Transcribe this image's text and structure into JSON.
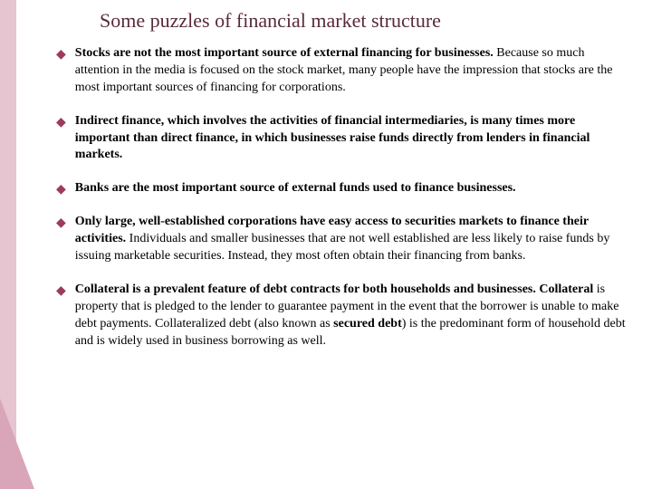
{
  "slide": {
    "title": "Some puzzles of financial market structure",
    "title_color": "#5a2a3a",
    "bullet_color": "#9c3b5a",
    "side_band_color": "#e6c4d0",
    "side_diag_color": "#d8a6b8",
    "background_color": "#ffffff",
    "title_fontsize": 22,
    "body_fontsize": 14,
    "bullets": [
      {
        "bold": "Stocks are not the most important source of external financing for businesses.",
        "rest": " Because so much attention in the media is focused on the stock market, many people have the impression that stocks are the most important sources of financing for corporations."
      },
      {
        "bold": "Indirect finance, which involves the activities of financial intermediaries, is many times more important than direct finance, in which businesses raise funds directly from lenders in financial markets.",
        "rest": ""
      },
      {
        "bold": "Banks are the most important source of external funds used to finance businesses.",
        "rest": ""
      },
      {
        "bold": "Only large, well-established corporations have easy access to securities markets to finance their activities.",
        "rest": " Individuals and smaller businesses that are not well established are less likely to raise funds by issuing marketable securities. Instead, they most often obtain their financing from banks."
      },
      {
        "bold": "Collateral is a prevalent feature of debt contracts for both households and businesses. Collateral",
        "rest": " is property that is pledged to the lender to guarantee payment in the event that the borrower is unable to make debt payments. Collateralized debt (also known as ",
        "bold2": "secured debt",
        "rest2": ") is the predominant form of household debt and is widely used in business borrowing as well."
      }
    ]
  }
}
